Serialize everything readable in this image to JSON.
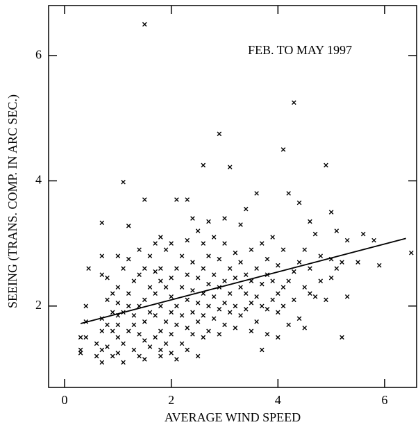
{
  "chart_data": {
    "type": "scatter",
    "x_label": "AVERAGE WIND SPEED",
    "y_label": "SEEING (TRANS. COMP. IN ARC SEC.)",
    "annotation": "FEB. TO MAY 1997",
    "xlim": [
      -0.3,
      6.6
    ],
    "ylim": [
      0.7,
      6.8
    ],
    "xticks": [
      0,
      2,
      4,
      6
    ],
    "yticks": [
      2,
      4,
      6
    ],
    "color": "#000000",
    "x": [
      0.3,
      0.3,
      0.3,
      0.4,
      0.4,
      0.4,
      0.45,
      0.6,
      0.6,
      0.7,
      0.7,
      0.7,
      0.7,
      0.7,
      0.7,
      0.7,
      0.8,
      0.8,
      0.8,
      0.8,
      0.9,
      0.9,
      0.9,
      0.9,
      1.0,
      1.0,
      1.0,
      1.0,
      1.0,
      1.0,
      1.0,
      1.1,
      1.1,
      1.1,
      1.1,
      1.1,
      1.2,
      1.2,
      1.2,
      1.2,
      1.2,
      1.3,
      1.3,
      1.3,
      1.3,
      1.4,
      1.4,
      1.4,
      1.4,
      1.4,
      1.5,
      1.5,
      1.5,
      1.5,
      1.5,
      1.5,
      1.5,
      1.6,
      1.6,
      1.6,
      1.6,
      1.7,
      1.7,
      1.7,
      1.7,
      1.7,
      1.8,
      1.8,
      1.8,
      1.8,
      1.8,
      1.8,
      1.8,
      1.9,
      1.9,
      1.9,
      1.9,
      2.0,
      2.0,
      2.0,
      2.0,
      2.0,
      2.0,
      2.1,
      2.1,
      2.1,
      2.1,
      2.1,
      2.2,
      2.2,
      2.2,
      2.2,
      2.3,
      2.3,
      2.3,
      2.3,
      2.3,
      2.3,
      2.4,
      2.4,
      2.4,
      2.4,
      2.4,
      2.5,
      2.5,
      2.5,
      2.5,
      2.5,
      2.6,
      2.6,
      2.6,
      2.6,
      2.6,
      2.6,
      2.7,
      2.7,
      2.7,
      2.7,
      2.7,
      2.8,
      2.8,
      2.8,
      2.8,
      2.9,
      2.9,
      2.9,
      2.9,
      2.9,
      3.0,
      3.0,
      3.0,
      3.0,
      3.0,
      3.1,
      3.1,
      3.1,
      3.1,
      3.2,
      3.2,
      3.2,
      3.2,
      3.3,
      3.3,
      3.3,
      3.3,
      3.4,
      3.4,
      3.4,
      3.4,
      3.5,
      3.5,
      3.5,
      3.5,
      3.6,
      3.6,
      3.6,
      3.6,
      3.7,
      3.7,
      3.7,
      3.7,
      3.8,
      3.8,
      3.8,
      3.8,
      3.9,
      3.9,
      3.9,
      4.0,
      4.0,
      4.0,
      4.0,
      4.1,
      4.1,
      4.1,
      4.1,
      4.2,
      4.2,
      4.2,
      4.3,
      4.3,
      4.3,
      4.4,
      4.4,
      4.4,
      4.5,
      4.5,
      4.5,
      4.6,
      4.6,
      4.6,
      4.7,
      4.7,
      4.8,
      4.8,
      4.9,
      4.9,
      5.0,
      5.0,
      5.0,
      5.1,
      5.1,
      5.2,
      5.2,
      5.3,
      5.3,
      5.5,
      5.6,
      5.8,
      5.9,
      6.5
    ],
    "values": [
      1.5,
      1.3,
      1.25,
      1.75,
      2.0,
      1.5,
      2.6,
      1.2,
      1.4,
      1.1,
      1.3,
      1.6,
      1.8,
      2.5,
      2.8,
      3.33,
      1.35,
      1.7,
      2.1,
      2.45,
      1.2,
      1.6,
      1.9,
      2.2,
      1.25,
      1.5,
      1.7,
      1.85,
      2.05,
      2.3,
      2.8,
      1.1,
      1.4,
      1.9,
      2.6,
      3.98,
      1.6,
      2.0,
      2.2,
      2.75,
      3.28,
      1.3,
      1.7,
      1.85,
      2.4,
      1.2,
      1.55,
      2.0,
      2.5,
      2.9,
      1.15,
      1.45,
      1.75,
      2.1,
      2.6,
      3.7,
      6.5,
      1.35,
      1.9,
      2.3,
      2.8,
      1.5,
      1.85,
      2.2,
      2.55,
      3.0,
      1.2,
      1.3,
      1.6,
      2.0,
      2.4,
      2.6,
      3.1,
      1.4,
      1.75,
      2.3,
      2.9,
      1.25,
      1.55,
      1.9,
      2.15,
      2.45,
      3.0,
      1.15,
      1.7,
      2.0,
      2.6,
      3.7,
      1.4,
      1.85,
      2.3,
      2.8,
      1.3,
      1.65,
      2.1,
      2.5,
      3.05,
      3.7,
      1.55,
      1.9,
      2.25,
      2.7,
      3.4,
      1.2,
      1.75,
      2.05,
      2.45,
      3.2,
      1.5,
      1.85,
      2.2,
      2.6,
      3.0,
      4.25,
      1.6,
      2.0,
      2.35,
      2.8,
      3.35,
      1.8,
      2.15,
      2.5,
      3.1,
      1.55,
      1.95,
      2.3,
      2.75,
      4.75,
      1.7,
      2.05,
      2.4,
      3.0,
      3.4,
      1.9,
      2.2,
      2.6,
      4.22,
      1.65,
      2.0,
      2.45,
      2.85,
      1.85,
      2.3,
      2.7,
      3.3,
      1.95,
      2.2,
      2.5,
      3.55,
      1.6,
      2.05,
      2.4,
      2.9,
      1.75,
      2.15,
      2.6,
      3.8,
      1.3,
      2.0,
      2.35,
      3.0,
      1.55,
      1.95,
      2.5,
      2.75,
      2.1,
      2.4,
      3.1,
      1.5,
      1.9,
      2.2,
      2.65,
      2.0,
      2.3,
      2.9,
      4.5,
      1.7,
      2.4,
      3.8,
      2.1,
      2.55,
      5.25,
      1.8,
      2.7,
      3.65,
      1.65,
      2.3,
      2.9,
      2.2,
      2.6,
      3.35,
      2.15,
      3.15,
      2.4,
      2.8,
      2.1,
      4.25,
      2.45,
      2.75,
      3.5,
      2.6,
      3.2,
      1.5,
      2.7,
      2.15,
      3.05,
      2.7,
      3.15,
      3.05,
      2.65,
      2.85
    ],
    "fit_line": {
      "x": [
        0.3,
        6.4
      ],
      "values": [
        1.72,
        3.08
      ]
    }
  }
}
